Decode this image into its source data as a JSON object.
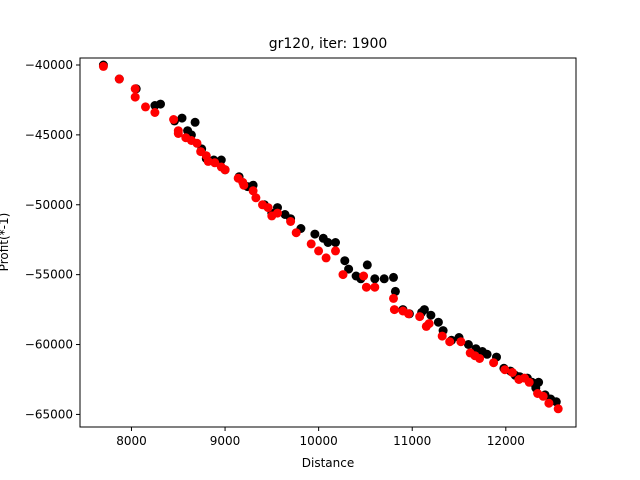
{
  "chart_data": {
    "type": "scatter",
    "title": "gr120, iter: 1900",
    "xlabel": "Distance",
    "ylabel": "Profit(*-1)",
    "xlim": [
      7450,
      12750
    ],
    "ylim": [
      -65900,
      -39500
    ],
    "xticks": [
      8000,
      9000,
      10000,
      11000,
      12000
    ],
    "yticks": [
      -65000,
      -60000,
      -55000,
      -50000,
      -45000,
      -40000
    ],
    "xtick_labels": [
      "8000",
      "9000",
      "10000",
      "11000",
      "12000"
    ],
    "ytick_labels": [
      "−65000",
      "−60000",
      "−55000",
      "−50000",
      "−45000",
      "−40000"
    ],
    "grid": false,
    "series": [
      {
        "color": "#000000",
        "points": [
          [
            7700,
            -40000
          ],
          [
            7870,
            -41000
          ],
          [
            8050,
            -41700
          ],
          [
            8250,
            -42900
          ],
          [
            8310,
            -42800
          ],
          [
            8460,
            -44000
          ],
          [
            8540,
            -43800
          ],
          [
            8600,
            -44700
          ],
          [
            8640,
            -45000
          ],
          [
            8680,
            -44100
          ],
          [
            8750,
            -46000
          ],
          [
            8800,
            -46700
          ],
          [
            8880,
            -46800
          ],
          [
            8960,
            -46800
          ],
          [
            9000,
            -47500
          ],
          [
            9150,
            -48000
          ],
          [
            9240,
            -48700
          ],
          [
            9300,
            -48600
          ],
          [
            9420,
            -50000
          ],
          [
            9500,
            -50600
          ],
          [
            9560,
            -50200
          ],
          [
            9640,
            -50700
          ],
          [
            9700,
            -51000
          ],
          [
            9810,
            -51700
          ],
          [
            9960,
            -52100
          ],
          [
            10050,
            -52400
          ],
          [
            10100,
            -52700
          ],
          [
            10180,
            -52700
          ],
          [
            10280,
            -54000
          ],
          [
            10320,
            -54600
          ],
          [
            10400,
            -55100
          ],
          [
            10450,
            -55300
          ],
          [
            10520,
            -54300
          ],
          [
            10600,
            -55300
          ],
          [
            10700,
            -55300
          ],
          [
            10800,
            -55200
          ],
          [
            10820,
            -56200
          ],
          [
            10900,
            -57500
          ],
          [
            10970,
            -57800
          ],
          [
            11100,
            -57700
          ],
          [
            11130,
            -57500
          ],
          [
            11200,
            -57900
          ],
          [
            11280,
            -58400
          ],
          [
            11330,
            -59000
          ],
          [
            11420,
            -59700
          ],
          [
            11500,
            -59500
          ],
          [
            11600,
            -60000
          ],
          [
            11680,
            -60300
          ],
          [
            11750,
            -60500
          ],
          [
            11800,
            -60700
          ],
          [
            11900,
            -60900
          ],
          [
            11980,
            -61700
          ],
          [
            12050,
            -61900
          ],
          [
            12100,
            -62200
          ],
          [
            12150,
            -62300
          ],
          [
            12230,
            -62400
          ],
          [
            12280,
            -62700
          ],
          [
            12320,
            -63100
          ],
          [
            12350,
            -62700
          ],
          [
            12420,
            -63600
          ],
          [
            12480,
            -63900
          ],
          [
            12540,
            -64100
          ]
        ]
      },
      {
        "color": "#ff0000",
        "points": [
          [
            7700,
            -40100
          ],
          [
            7870,
            -41000
          ],
          [
            8040,
            -41700
          ],
          [
            8040,
            -42300
          ],
          [
            8150,
            -43000
          ],
          [
            8250,
            -43400
          ],
          [
            8450,
            -43900
          ],
          [
            8500,
            -44700
          ],
          [
            8500,
            -44900
          ],
          [
            8580,
            -45200
          ],
          [
            8640,
            -45400
          ],
          [
            8700,
            -45600
          ],
          [
            8740,
            -46200
          ],
          [
            8800,
            -46500
          ],
          [
            8820,
            -46900
          ],
          [
            8890,
            -47000
          ],
          [
            8960,
            -47300
          ],
          [
            9000,
            -47500
          ],
          [
            9140,
            -48100
          ],
          [
            9190,
            -48400
          ],
          [
            9200,
            -48600
          ],
          [
            9300,
            -49000
          ],
          [
            9330,
            -49500
          ],
          [
            9400,
            -50000
          ],
          [
            9460,
            -50200
          ],
          [
            9500,
            -50800
          ],
          [
            9560,
            -50600
          ],
          [
            9700,
            -51200
          ],
          [
            9760,
            -52000
          ],
          [
            9920,
            -52800
          ],
          [
            10000,
            -53300
          ],
          [
            10080,
            -53800
          ],
          [
            10180,
            -53300
          ],
          [
            10260,
            -55000
          ],
          [
            10480,
            -55100
          ],
          [
            10510,
            -55900
          ],
          [
            10600,
            -55900
          ],
          [
            10800,
            -56700
          ],
          [
            10810,
            -57500
          ],
          [
            10900,
            -57600
          ],
          [
            10960,
            -57800
          ],
          [
            11080,
            -58000
          ],
          [
            11150,
            -58700
          ],
          [
            11180,
            -58500
          ],
          [
            11320,
            -59400
          ],
          [
            11400,
            -59800
          ],
          [
            11520,
            -59800
          ],
          [
            11620,
            -60600
          ],
          [
            11670,
            -60800
          ],
          [
            11720,
            -61000
          ],
          [
            11870,
            -61300
          ],
          [
            11990,
            -61800
          ],
          [
            12070,
            -62000
          ],
          [
            12140,
            -62500
          ],
          [
            12200,
            -62400
          ],
          [
            12250,
            -62700
          ],
          [
            12340,
            -63500
          ],
          [
            12400,
            -63700
          ],
          [
            12460,
            -64200
          ],
          [
            12560,
            -64600
          ]
        ]
      }
    ]
  }
}
